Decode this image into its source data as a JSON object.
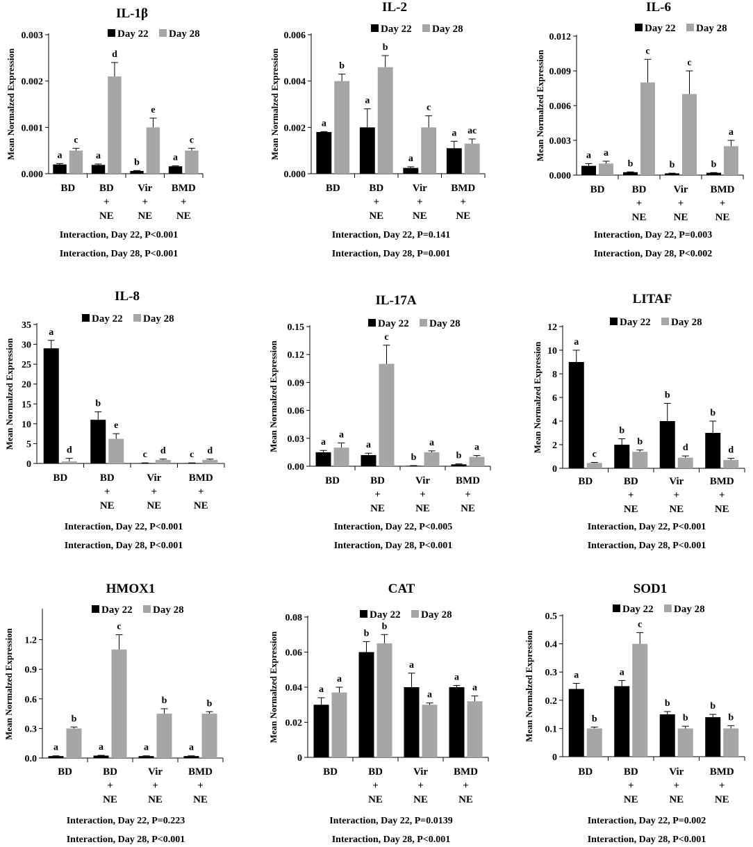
{
  "figure": {
    "legend_labels": [
      "Day 22",
      "Day 28"
    ],
    "ylabel": "Mean Normalzed Expression",
    "colors": {
      "day22": "#000000",
      "day28": "#a6a6a6",
      "axis": "#000000"
    }
  },
  "chart_data": [
    {
      "type": "bar",
      "title": "IL-1β",
      "categories": [
        [
          "BD"
        ],
        [
          "BD",
          "+",
          "NE"
        ],
        [
          "Vir",
          "+",
          "NE"
        ],
        [
          "BMD",
          "+",
          "NE"
        ]
      ],
      "series": [
        {
          "name": "Day 22",
          "values": [
            0.0002,
            0.00019,
            6e-05,
            0.00016
          ],
          "errors": [
            2e-05,
            2e-05,
            1e-05,
            1e-05
          ],
          "letters": [
            "a",
            "a",
            "b",
            "a"
          ]
        },
        {
          "name": "Day 28",
          "values": [
            0.0005,
            0.0021,
            0.001,
            0.0005
          ],
          "errors": [
            5e-05,
            0.0003,
            0.0002,
            5e-05
          ],
          "letters": [
            "c",
            "d",
            "e",
            "c"
          ]
        }
      ],
      "ylim": [
        0,
        0.003
      ],
      "yticks": [
        "0.000",
        "0.001",
        "0.002",
        "0.003"
      ],
      "xlabel": "",
      "ylabel": "Mean Normalzed Expression",
      "stats": [
        "Interaction, Day 22, P<0.001",
        "Interaction, Day 28, P<0.001"
      ]
    },
    {
      "type": "bar",
      "title": "IL-2",
      "categories": [
        [
          "BD"
        ],
        [
          "BD",
          "+",
          "NE"
        ],
        [
          "Vir",
          "+",
          "NE"
        ],
        [
          "BMD",
          "+",
          "NE"
        ]
      ],
      "series": [
        {
          "name": "Day 22",
          "values": [
            0.0018,
            0.002,
            0.00025,
            0.0011
          ],
          "errors": [
            2e-05,
            0.0008,
            5e-05,
            0.0003
          ],
          "letters": [
            "a",
            "a",
            "a",
            "a"
          ]
        },
        {
          "name": "Day 28",
          "values": [
            0.004,
            0.0046,
            0.002,
            0.0013
          ],
          "errors": [
            0.0003,
            0.0005,
            0.0005,
            0.0002
          ],
          "letters": [
            "b",
            "b",
            "c",
            "ac"
          ]
        }
      ],
      "ylim": [
        0,
        0.006
      ],
      "yticks": [
        "0.000",
        "0.002",
        "0.004",
        "0.006"
      ],
      "xlabel": "",
      "ylabel": "Mean Normalzed Expression",
      "stats": [
        "Interaction, Day 22, P=0.141",
        "Interaction, Day 28, P=0.001"
      ]
    },
    {
      "type": "bar",
      "title": "IL-6",
      "categories": [
        [
          "BD"
        ],
        [
          "BD",
          "+",
          "NE"
        ],
        [
          "Vir",
          "+",
          "NE"
        ],
        [
          "BMD",
          "+",
          "NE"
        ]
      ],
      "series": [
        {
          "name": "Day 22",
          "values": [
            0.0008,
            0.00025,
            0.00015,
            0.0002
          ],
          "errors": [
            0.0002,
            3e-05,
            2e-05,
            2e-05
          ],
          "letters": [
            "a",
            "b",
            "b",
            "b"
          ]
        },
        {
          "name": "Day 28",
          "values": [
            0.001,
            0.008,
            0.007,
            0.0025
          ],
          "errors": [
            0.0002,
            0.002,
            0.002,
            0.0005
          ],
          "letters": [
            "a",
            "c",
            "c",
            "a"
          ]
        }
      ],
      "ylim": [
        0,
        0.012
      ],
      "yticks": [
        "0.000",
        "0.003",
        "0.006",
        "0.009",
        "0.012"
      ],
      "xlabel": "",
      "ylabel": "Mean Normalzed Expression",
      "stats": [
        "Interaction, Day 22, P=0.003",
        "Interaction, Day 28, P<0.002"
      ]
    },
    {
      "type": "bar",
      "title": "IL-8",
      "categories": [
        [
          "BD"
        ],
        [
          "BD",
          "+",
          "NE"
        ],
        [
          "Vir",
          "+",
          "NE"
        ],
        [
          "BMD",
          "+",
          "NE"
        ]
      ],
      "series": [
        {
          "name": "Day 22",
          "values": [
            29,
            11,
            0.1,
            0.1
          ],
          "errors": [
            2,
            2,
            0.05,
            0.05
          ],
          "letters": [
            "a",
            "b",
            "c",
            "c"
          ]
        },
        {
          "name": "Day 28",
          "values": [
            0.5,
            6.2,
            0.9,
            0.9
          ],
          "errors": [
            0.8,
            1.3,
            0.2,
            0.2
          ],
          "letters": [
            "d",
            "e",
            "d",
            "d"
          ]
        }
      ],
      "ylim": [
        0,
        35
      ],
      "yticks": [
        "0",
        "5",
        "10",
        "15",
        "20",
        "25",
        "30",
        "35"
      ],
      "xlabel": "",
      "ylabel": "Mean Normalzed Expression",
      "stats": [
        "Interaction, Day 22, P<0.001",
        "Interaction, Day 28, P<0.001"
      ]
    },
    {
      "type": "bar",
      "title": "IL-17A",
      "categories": [
        [
          "BD"
        ],
        [
          "BD",
          "+",
          "NE"
        ],
        [
          "Vir",
          "+",
          "NE"
        ],
        [
          "BMD",
          "+",
          "NE"
        ]
      ],
      "series": [
        {
          "name": "Day 22",
          "values": [
            0.015,
            0.012,
            0.0005,
            0.002
          ],
          "errors": [
            0.002,
            0.002,
            0.0002,
            0.0005
          ],
          "letters": [
            "a",
            "a",
            "b",
            "b"
          ]
        },
        {
          "name": "Day 28",
          "values": [
            0.02,
            0.11,
            0.015,
            0.01
          ],
          "errors": [
            0.005,
            0.02,
            0.0015,
            0.0015
          ],
          "letters": [
            "a",
            "c",
            "a",
            "a"
          ]
        }
      ],
      "ylim": [
        0,
        0.15
      ],
      "yticks": [
        "0.00",
        "0.03",
        "0.06",
        "0.09",
        "0.12",
        "0.15"
      ],
      "xlabel": "",
      "ylabel": "Mean Normalzed Expression",
      "stats": [
        "Interaction, Day 22, P<0.005",
        "Interaction, Day 28, P<0.001"
      ]
    },
    {
      "type": "bar",
      "title": "LITAF",
      "categories": [
        [
          "BD"
        ],
        [
          "BD",
          "+",
          "NE"
        ],
        [
          "Vir",
          "+",
          "NE"
        ],
        [
          "BMD",
          "+",
          "NE"
        ]
      ],
      "series": [
        {
          "name": "Day 22",
          "values": [
            9,
            2,
            4,
            3
          ],
          "errors": [
            1,
            0.5,
            1.5,
            1
          ],
          "letters": [
            "a",
            "b",
            "b",
            "b"
          ]
        },
        {
          "name": "Day 28",
          "values": [
            0.45,
            1.4,
            0.9,
            0.7
          ],
          "errors": [
            0.05,
            0.15,
            0.15,
            0.15
          ],
          "letters": [
            "c",
            "b",
            "d",
            "d"
          ]
        }
      ],
      "ylim": [
        0,
        12
      ],
      "yticks": [
        "0",
        "2",
        "4",
        "6",
        "8",
        "10",
        "12"
      ],
      "xlabel": "",
      "ylabel": "Mean Normalzed Expression",
      "stats": [
        "Interaction, Day 22, P<0.001",
        "Interaction, Day 28, P<0.001"
      ]
    },
    {
      "type": "bar",
      "title": "HMOX1",
      "categories": [
        [
          "BD"
        ],
        [
          "BD",
          "+",
          "NE"
        ],
        [
          "Vir",
          "+",
          "NE"
        ],
        [
          "BMD",
          "+",
          "NE"
        ]
      ],
      "series": [
        {
          "name": "Day 22",
          "values": [
            0.02,
            0.025,
            0.02,
            0.02
          ],
          "errors": [
            0.003,
            0.003,
            0.003,
            0.003
          ],
          "letters": [
            "a",
            "a",
            "a",
            "a"
          ]
        },
        {
          "name": "Day 28",
          "values": [
            0.3,
            1.1,
            0.45,
            0.45
          ],
          "errors": [
            0.015,
            0.15,
            0.05,
            0.02
          ],
          "letters": [
            "b",
            "c",
            "b",
            "b"
          ]
        }
      ],
      "ylim": [
        0,
        1.5
      ],
      "yticks": [
        "0.0",
        "0.3",
        "0.6",
        "0.9",
        "1.2"
      ],
      "xlabel": "",
      "ylabel": "Mean Normalzed Expression",
      "stats": [
        "Interaction, Day 22, P=0.223",
        "Interaction, Day 28, P<0.001"
      ]
    },
    {
      "type": "bar",
      "title": "CAT",
      "categories": [
        [
          "BD"
        ],
        [
          "BD",
          "+",
          "NE"
        ],
        [
          "Vir",
          "+",
          "NE"
        ],
        [
          "BMD",
          "+",
          "NE"
        ]
      ],
      "series": [
        {
          "name": "Day 22",
          "values": [
            0.03,
            0.06,
            0.04,
            0.04
          ],
          "errors": [
            0.004,
            0.006,
            0.008,
            0.001
          ],
          "letters": [
            "a",
            "b",
            "a",
            "a"
          ]
        },
        {
          "name": "Day 28",
          "values": [
            0.037,
            0.065,
            0.03,
            0.032
          ],
          "errors": [
            0.003,
            0.005,
            0.001,
            0.003
          ],
          "letters": [
            "a",
            "b",
            "a",
            "a"
          ]
        }
      ],
      "ylim": [
        0,
        0.08
      ],
      "yticks": [
        "0",
        "0.02",
        "0.04",
        "0.06",
        "0.08"
      ],
      "xlabel": "",
      "ylabel": "Mean Normalzed Expression",
      "stats": [
        "Interaction, Day 22, P=0.0139",
        "Interaction, Day 28, P<0.001"
      ]
    },
    {
      "type": "bar",
      "title": "SOD1",
      "categories": [
        [
          "BD"
        ],
        [
          "BD",
          "+",
          "NE"
        ],
        [
          "Vir",
          "+",
          "NE"
        ],
        [
          "BMD",
          "+",
          "NE"
        ]
      ],
      "series": [
        {
          "name": "Day 22",
          "values": [
            0.24,
            0.25,
            0.15,
            0.14
          ],
          "errors": [
            0.02,
            0.02,
            0.01,
            0.01
          ],
          "letters": [
            "a",
            "a",
            "b",
            "b"
          ]
        },
        {
          "name": "Day 28",
          "values": [
            0.1,
            0.4,
            0.1,
            0.1
          ],
          "errors": [
            0.005,
            0.04,
            0.008,
            0.01
          ],
          "letters": [
            "b",
            "c",
            "b",
            "b"
          ]
        }
      ],
      "ylim": [
        0,
        0.5
      ],
      "yticks": [
        "0",
        "0.1",
        "0.2",
        "0.3",
        "0.4",
        "0.5"
      ],
      "xlabel": "",
      "ylabel": "Mean Normalzed Expression",
      "stats": [
        "Interaction, Day 22, P=0.002",
        "Interaction, Day 28, P<0.001"
      ]
    }
  ]
}
